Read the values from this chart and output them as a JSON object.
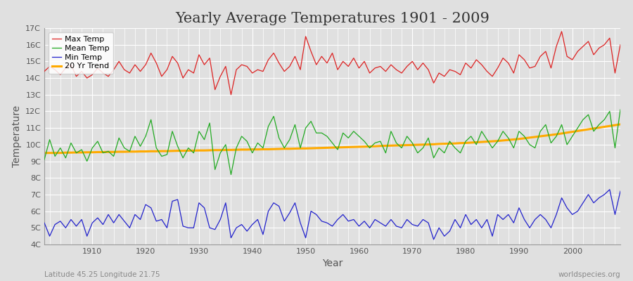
{
  "title": "Yearly Average Temperatures 1901 - 2009",
  "xlabel": "Year",
  "ylabel": "Temperature",
  "footnote_left": "Latitude 45.25 Longitude 21.75",
  "footnote_right": "worldspecies.org",
  "years": [
    1901,
    1902,
    1903,
    1904,
    1905,
    1906,
    1907,
    1908,
    1909,
    1910,
    1911,
    1912,
    1913,
    1914,
    1915,
    1916,
    1917,
    1918,
    1919,
    1920,
    1921,
    1922,
    1923,
    1924,
    1925,
    1926,
    1927,
    1928,
    1929,
    1930,
    1931,
    1932,
    1933,
    1934,
    1935,
    1936,
    1937,
    1938,
    1939,
    1940,
    1941,
    1942,
    1943,
    1944,
    1945,
    1946,
    1947,
    1948,
    1949,
    1950,
    1951,
    1952,
    1953,
    1954,
    1955,
    1956,
    1957,
    1958,
    1959,
    1960,
    1961,
    1962,
    1963,
    1964,
    1965,
    1966,
    1967,
    1968,
    1969,
    1970,
    1971,
    1972,
    1973,
    1974,
    1975,
    1976,
    1977,
    1978,
    1979,
    1980,
    1981,
    1982,
    1983,
    1984,
    1985,
    1986,
    1987,
    1988,
    1989,
    1990,
    1991,
    1992,
    1993,
    1994,
    1995,
    1996,
    1997,
    1998,
    1999,
    2000,
    2001,
    2002,
    2003,
    2004,
    2005,
    2006,
    2007,
    2008,
    2009
  ],
  "max_temp": [
    14.4,
    14.7,
    14.5,
    14.2,
    14.6,
    14.8,
    14.1,
    14.4,
    14.0,
    14.2,
    14.6,
    14.3,
    14.1,
    14.5,
    15.0,
    14.5,
    14.3,
    14.8,
    14.4,
    14.8,
    15.5,
    14.9,
    14.1,
    14.5,
    15.3,
    14.9,
    14.0,
    14.5,
    14.3,
    15.4,
    14.8,
    15.2,
    13.3,
    14.1,
    14.7,
    13.0,
    14.5,
    14.8,
    14.7,
    14.3,
    14.5,
    14.4,
    15.1,
    15.5,
    14.9,
    14.4,
    14.7,
    15.3,
    14.5,
    16.5,
    15.6,
    14.8,
    15.3,
    14.9,
    15.5,
    14.5,
    15.0,
    14.7,
    15.2,
    14.6,
    15.0,
    14.3,
    14.6,
    14.7,
    14.4,
    14.8,
    14.5,
    14.3,
    14.7,
    15.0,
    14.5,
    14.9,
    14.5,
    13.7,
    14.3,
    14.1,
    14.5,
    14.4,
    14.2,
    14.9,
    14.6,
    15.1,
    14.8,
    14.4,
    14.1,
    14.6,
    15.2,
    14.9,
    14.3,
    15.4,
    15.1,
    14.6,
    14.7,
    15.3,
    15.6,
    14.6,
    15.9,
    16.8,
    15.3,
    15.1,
    15.6,
    15.9,
    16.2,
    15.4,
    15.8,
    16.0,
    16.4,
    14.3,
    16.0
  ],
  "mean_temp": [
    9.1,
    10.3,
    9.3,
    9.8,
    9.2,
    10.1,
    9.5,
    9.7,
    9.0,
    9.8,
    10.2,
    9.5,
    9.6,
    9.3,
    10.4,
    9.8,
    9.6,
    10.5,
    9.9,
    10.5,
    11.5,
    9.8,
    9.3,
    9.4,
    10.8,
    9.9,
    9.2,
    9.8,
    9.5,
    10.8,
    10.3,
    11.3,
    8.5,
    9.5,
    10.0,
    8.2,
    9.8,
    10.5,
    10.2,
    9.5,
    10.1,
    9.8,
    11.1,
    11.7,
    10.4,
    9.8,
    10.3,
    11.2,
    9.8,
    11.0,
    11.4,
    10.7,
    10.7,
    10.5,
    10.1,
    9.7,
    10.7,
    10.4,
    10.8,
    10.5,
    10.2,
    9.8,
    10.1,
    10.2,
    9.5,
    10.8,
    10.1,
    9.8,
    10.5,
    10.1,
    9.5,
    9.8,
    10.4,
    9.2,
    9.8,
    9.5,
    10.2,
    9.8,
    9.5,
    10.2,
    10.5,
    10.0,
    10.8,
    10.3,
    9.8,
    10.2,
    10.8,
    10.4,
    9.8,
    10.8,
    10.5,
    10.0,
    9.8,
    10.8,
    11.2,
    10.1,
    10.5,
    11.2,
    10.0,
    10.5,
    11.0,
    11.5,
    11.8,
    10.8,
    11.2,
    11.5,
    12.0,
    9.8,
    12.1
  ],
  "min_temp": [
    5.3,
    4.5,
    5.2,
    5.4,
    5.0,
    5.5,
    5.1,
    5.5,
    4.5,
    5.3,
    5.6,
    5.2,
    5.8,
    5.3,
    5.8,
    5.4,
    5.0,
    5.8,
    5.5,
    6.4,
    6.2,
    5.4,
    5.5,
    5.0,
    6.6,
    6.7,
    5.1,
    5.0,
    5.0,
    6.5,
    6.2,
    5.0,
    4.9,
    5.5,
    6.5,
    4.4,
    5.0,
    5.2,
    4.8,
    5.2,
    5.5,
    4.6,
    6.0,
    6.5,
    6.3,
    5.4,
    5.9,
    6.5,
    5.3,
    4.4,
    6.0,
    5.8,
    5.4,
    5.3,
    5.1,
    5.5,
    5.8,
    5.4,
    5.5,
    5.1,
    5.4,
    5.0,
    5.5,
    5.3,
    5.1,
    5.5,
    5.1,
    5.0,
    5.5,
    5.2,
    5.1,
    5.5,
    5.3,
    4.3,
    5.0,
    4.5,
    4.8,
    5.5,
    5.0,
    5.8,
    5.2,
    5.5,
    5.0,
    5.5,
    4.5,
    5.8,
    5.5,
    5.8,
    5.3,
    6.2,
    5.5,
    5.0,
    5.5,
    5.8,
    5.5,
    5.0,
    5.8,
    6.8,
    6.2,
    5.8,
    6.0,
    6.5,
    7.0,
    6.5,
    6.8,
    7.0,
    7.3,
    5.8,
    7.2
  ],
  "trend": [
    9.5,
    9.5,
    9.5,
    9.5,
    9.52,
    9.52,
    9.53,
    9.53,
    9.54,
    9.54,
    9.55,
    9.55,
    9.56,
    9.56,
    9.57,
    9.57,
    9.58,
    9.58,
    9.59,
    9.59,
    9.6,
    9.6,
    9.61,
    9.61,
    9.62,
    9.63,
    9.63,
    9.64,
    9.64,
    9.65,
    9.65,
    9.66,
    9.67,
    9.67,
    9.68,
    9.68,
    9.69,
    9.7,
    9.7,
    9.71,
    9.71,
    9.72,
    9.72,
    9.73,
    9.74,
    9.75,
    9.75,
    9.76,
    9.77,
    9.77,
    9.78,
    9.79,
    9.8,
    9.81,
    9.82,
    9.83,
    9.84,
    9.85,
    9.86,
    9.87,
    9.88,
    9.89,
    9.9,
    9.92,
    9.93,
    9.94,
    9.95,
    9.96,
    9.97,
    9.98,
    9.99,
    10.0,
    10.01,
    10.02,
    10.04,
    10.05,
    10.06,
    10.07,
    10.09,
    10.1,
    10.12,
    10.14,
    10.16,
    10.18,
    10.2,
    10.22,
    10.25,
    10.28,
    10.31,
    10.34,
    10.38,
    10.42,
    10.46,
    10.5,
    10.54,
    10.58,
    10.62,
    10.67,
    10.72,
    10.77,
    10.82,
    10.87,
    10.92,
    10.97,
    11.02,
    11.07,
    11.12,
    11.17,
    11.22
  ],
  "max_color": "#dd2222",
  "mean_color": "#22aa22",
  "min_color": "#2222cc",
  "trend_color": "#ffaa00",
  "bg_color": "#e0e0e0",
  "plot_bg_color": "#e0e0e0",
  "grid_color": "#ffffff",
  "ylim": [
    4,
    17
  ],
  "yticks": [
    4,
    5,
    6,
    7,
    8,
    9,
    10,
    11,
    12,
    13,
    14,
    15,
    16,
    17
  ],
  "ytick_labels": [
    "4C",
    "5C",
    "6C",
    "7C",
    "8C",
    "9C",
    "10C",
    "11C",
    "12C",
    "13C",
    "14C",
    "15C",
    "16C",
    "17C"
  ],
  "xlim": [
    1901,
    2009
  ],
  "xticks": [
    1910,
    1920,
    1930,
    1940,
    1950,
    1960,
    1970,
    1980,
    1990,
    2000
  ],
  "title_fontsize": 15,
  "axis_label_fontsize": 10,
  "tick_fontsize": 8,
  "legend_fontsize": 8,
  "footnote_fontsize": 7.5
}
